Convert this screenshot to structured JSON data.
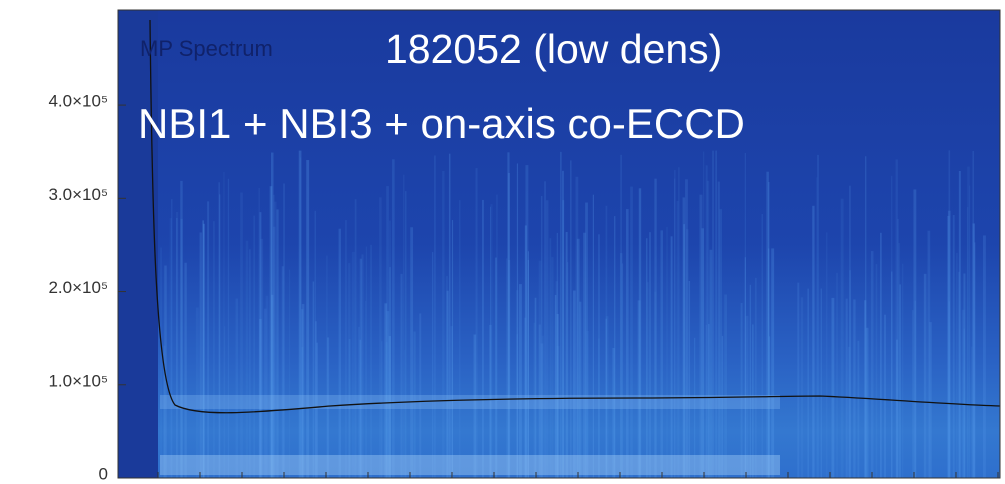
{
  "chart_data": {
    "type": "spectrogram",
    "title": "182052 (low dens)",
    "subtitle": "NBI1 + NBI3 + on-axis co-ECCD",
    "annotation": "MP Spectrum",
    "ylim": [
      0,
      502000
    ],
    "yticks": [
      0,
      {
        "value": 100000,
        "label": "1.0×10⁵"
      },
      {
        "value": 200000,
        "label": "2.0×10⁵"
      },
      {
        "value": 300000,
        "label": "3.0×10⁵"
      },
      {
        "value": 400000,
        "label": "4.0×10⁵"
      }
    ]
  }
}
